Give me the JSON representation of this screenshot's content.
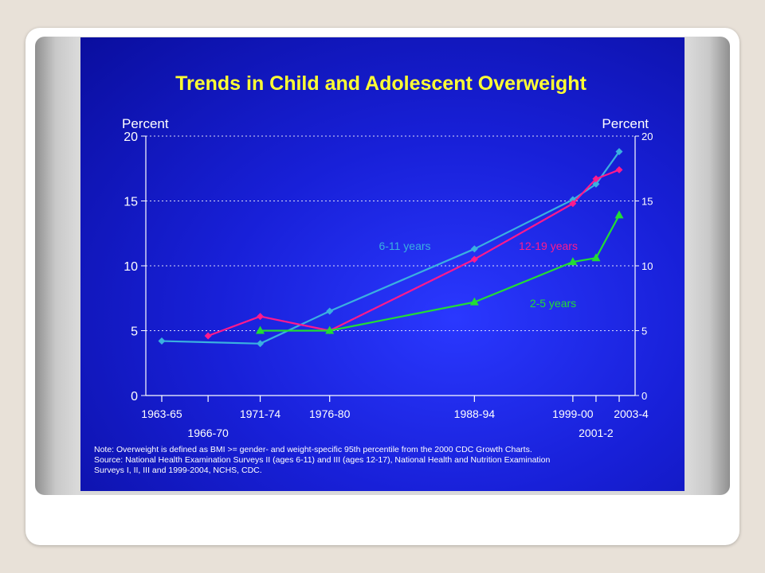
{
  "chart_data": {
    "type": "line",
    "title": "Trends in Child and Adolescent Overweight",
    "ylabel_left": "Percent",
    "ylabel_right": "Percent",
    "xlabel": "",
    "ylim": [
      0,
      20
    ],
    "yticks": [
      0,
      5,
      10,
      15,
      20
    ],
    "grid": true,
    "x_ticks": [
      {
        "label": "1963-65",
        "year": 1964
      },
      {
        "label": "1966-70",
        "year": 1968
      },
      {
        "label": "1971-74",
        "year": 1972.5
      },
      {
        "label": "1976-80",
        "year": 1978.5
      },
      {
        "label": "1988-94",
        "year": 1991
      },
      {
        "label": "1999-00",
        "year": 1999.5
      },
      {
        "label": "2001-2",
        "year": 2001.5
      },
      {
        "label": "2003-4",
        "year": 2003.5
      }
    ],
    "series": [
      {
        "name": "6-11 years",
        "color": "#3ab0e0",
        "marker": "diamond",
        "points": [
          {
            "x": 1964,
            "y": 4.2
          },
          {
            "x": 1972.5,
            "y": 4.0
          },
          {
            "x": 1978.5,
            "y": 6.5
          },
          {
            "x": 1991,
            "y": 11.3
          },
          {
            "x": 1999.5,
            "y": 15.1
          },
          {
            "x": 2001.5,
            "y": 16.3
          },
          {
            "x": 2003.5,
            "y": 18.8
          }
        ]
      },
      {
        "name": "12-19 years",
        "color": "#ff1a8c",
        "marker": "diamond",
        "points": [
          {
            "x": 1968,
            "y": 4.6
          },
          {
            "x": 1972.5,
            "y": 6.1
          },
          {
            "x": 1978.5,
            "y": 5.0
          },
          {
            "x": 1991,
            "y": 10.5
          },
          {
            "x": 1999.5,
            "y": 14.8
          },
          {
            "x": 2001.5,
            "y": 16.7
          },
          {
            "x": 2003.5,
            "y": 17.4
          }
        ]
      },
      {
        "name": "2-5 years",
        "color": "#22dd33",
        "marker": "triangle",
        "points": [
          {
            "x": 1972.5,
            "y": 5.0
          },
          {
            "x": 1978.5,
            "y": 5.0
          },
          {
            "x": 1991,
            "y": 7.2
          },
          {
            "x": 1999.5,
            "y": 10.3
          },
          {
            "x": 2001.5,
            "y": 10.6
          },
          {
            "x": 2003.5,
            "y": 13.9
          }
        ]
      }
    ],
    "note_lines": [
      "Note: Overweight is defined as BMI >= gender- and weight-specific 95th percentile from the 2000 CDC Growth Charts.",
      "Source: National Health Examination Surveys II (ages 6-11) and III (ages 12-17), National Health and Nutrition Examination",
      "Surveys I, II, III and 1999-2004, NCHS, CDC."
    ]
  }
}
